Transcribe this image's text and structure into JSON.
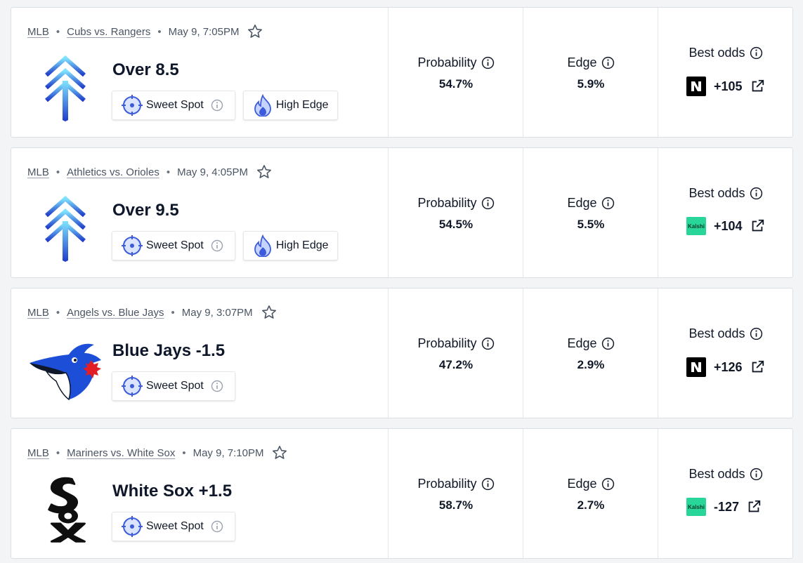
{
  "picks": [
    {
      "league": "MLB",
      "matchup": "Cubs vs. Rangers",
      "time": "May 9, 7:05PM",
      "logo": "arrows-up-icon",
      "pick": "Over 8.5",
      "tags": [
        "Sweet Spot",
        "High Edge"
      ],
      "probability_label": "Probability",
      "probability": "54.7%",
      "edge_label": "Edge",
      "edge": "5.9%",
      "odds_label": "Best odds",
      "book": "novig",
      "odds": "+105"
    },
    {
      "league": "MLB",
      "matchup": "Athletics vs. Orioles",
      "time": "May 9, 4:05PM",
      "logo": "arrows-up-icon",
      "pick": "Over 9.5",
      "tags": [
        "Sweet Spot",
        "High Edge"
      ],
      "probability_label": "Probability",
      "probability": "54.5%",
      "edge_label": "Edge",
      "edge": "5.5%",
      "odds_label": "Best odds",
      "book": "kalshi",
      "book_label": "Kalshi",
      "odds": "+104"
    },
    {
      "league": "MLB",
      "matchup": "Angels vs. Blue Jays",
      "time": "May 9, 3:07PM",
      "logo": "blue-jays-logo",
      "pick": "Blue Jays -1.5",
      "tags": [
        "Sweet Spot"
      ],
      "probability_label": "Probability",
      "probability": "47.2%",
      "edge_label": "Edge",
      "edge": "2.9%",
      "odds_label": "Best odds",
      "book": "novig",
      "odds": "+126"
    },
    {
      "league": "MLB",
      "matchup": "Mariners vs. White Sox",
      "time": "May 9, 7:10PM",
      "logo": "white-sox-logo",
      "pick": "White Sox +1.5",
      "tags": [
        "Sweet Spot"
      ],
      "probability_label": "Probability",
      "probability": "58.7%",
      "edge_label": "Edge",
      "edge": "2.7%",
      "odds_label": "Best odds",
      "book": "kalshi",
      "book_label": "Kalshi",
      "odds": "-127"
    }
  ],
  "colors": {
    "accent_blue": "#3b5bdb",
    "kalshi_green": "#28d69a",
    "text": "#111827",
    "muted": "#4b5563"
  }
}
